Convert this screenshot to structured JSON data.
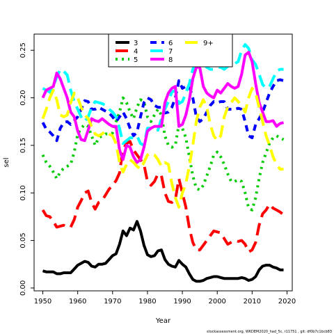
{
  "chart_data": {
    "type": "line",
    "xlabel": "Year",
    "ylabel": "sel",
    "xlim": [
      1947.5,
      2021.5
    ],
    "ylim": [
      -0.003,
      0.267
    ],
    "x_ticks": [
      1950,
      1960,
      1970,
      1980,
      1990,
      2000,
      2010,
      2020
    ],
    "y_ticks": [
      0.0,
      0.05,
      0.1,
      0.15,
      0.2,
      0.25
    ],
    "y_tick_labels": [
      "0.00",
      "0.05",
      "0.10",
      "0.15",
      "0.20",
      "0.25"
    ],
    "legend_position": "top-center",
    "footnote": "stockassessment.org, WKDEM2020_had_5c, r11751 , git: df0b7c1bcb83",
    "years": [
      1950,
      1951,
      1952,
      1953,
      1954,
      1955,
      1956,
      1957,
      1958,
      1959,
      1960,
      1961,
      1962,
      1963,
      1964,
      1965,
      1966,
      1967,
      1968,
      1969,
      1970,
      1971,
      1972,
      1973,
      1974,
      1975,
      1976,
      1977,
      1978,
      1979,
      1980,
      1981,
      1982,
      1983,
      1984,
      1985,
      1986,
      1987,
      1988,
      1989,
      1990,
      1991,
      1992,
      1993,
      1994,
      1995,
      1996,
      1997,
      1998,
      1999,
      2000,
      2001,
      2002,
      2003,
      2004,
      2005,
      2006,
      2007,
      2008,
      2009,
      2010,
      2011,
      2012,
      2013,
      2014,
      2015,
      2016,
      2017,
      2018,
      2019
    ],
    "series": [
      {
        "name": "3",
        "color": "#000000",
        "dash": "solid",
        "values": [
          0.018,
          0.017,
          0.017,
          0.017,
          0.015,
          0.015,
          0.016,
          0.016,
          0.016,
          0.02,
          0.024,
          0.026,
          0.028,
          0.027,
          0.023,
          0.022,
          0.025,
          0.025,
          0.026,
          0.03,
          0.034,
          0.036,
          0.046,
          0.06,
          0.055,
          0.063,
          0.061,
          0.07,
          0.06,
          0.045,
          0.035,
          0.033,
          0.034,
          0.039,
          0.04,
          0.03,
          0.025,
          0.023,
          0.022,
          0.029,
          0.025,
          0.022,
          0.015,
          0.009,
          0.007,
          0.007,
          0.008,
          0.01,
          0.011,
          0.012,
          0.012,
          0.011,
          0.01,
          0.01,
          0.01,
          0.01,
          0.01,
          0.011,
          0.01,
          0.008,
          0.009,
          0.012,
          0.019,
          0.023,
          0.024,
          0.024,
          0.022,
          0.021,
          0.019,
          0.019
        ]
      },
      {
        "name": "4",
        "color": "#ff0000",
        "dash": "long",
        "values": [
          0.082,
          0.076,
          0.075,
          0.07,
          0.064,
          0.065,
          0.066,
          0.064,
          0.064,
          0.072,
          0.085,
          0.092,
          0.1,
          0.102,
          0.09,
          0.083,
          0.09,
          0.092,
          0.098,
          0.104,
          0.108,
          0.113,
          0.121,
          0.146,
          0.152,
          0.154,
          0.145,
          0.14,
          0.135,
          0.13,
          0.112,
          0.108,
          0.112,
          0.12,
          0.118,
          0.1,
          0.091,
          0.09,
          0.093,
          0.115,
          0.1,
          0.085,
          0.063,
          0.048,
          0.04,
          0.04,
          0.045,
          0.05,
          0.055,
          0.06,
          0.059,
          0.058,
          0.052,
          0.046,
          0.048,
          0.05,
          0.049,
          0.05,
          0.046,
          0.038,
          0.04,
          0.048,
          0.066,
          0.078,
          0.082,
          0.088,
          0.084,
          0.082,
          0.08,
          0.077
        ]
      },
      {
        "name": "5",
        "color": "#00cc00",
        "dash": "dotted",
        "values": [
          0.14,
          0.132,
          0.128,
          0.122,
          0.115,
          0.122,
          0.126,
          0.128,
          0.13,
          0.143,
          0.162,
          0.168,
          0.172,
          0.17,
          0.16,
          0.15,
          0.158,
          0.16,
          0.162,
          0.162,
          0.163,
          0.175,
          0.185,
          0.2,
          0.195,
          0.185,
          0.178,
          0.19,
          0.198,
          0.196,
          0.18,
          0.175,
          0.182,
          0.188,
          0.182,
          0.16,
          0.15,
          0.148,
          0.15,
          0.172,
          0.168,
          0.158,
          0.138,
          0.118,
          0.105,
          0.103,
          0.108,
          0.118,
          0.128,
          0.14,
          0.143,
          0.138,
          0.13,
          0.12,
          0.112,
          0.112,
          0.114,
          0.112,
          0.1,
          0.084,
          0.082,
          0.095,
          0.115,
          0.132,
          0.142,
          0.152,
          0.158,
          0.16,
          0.158,
          0.156
        ]
      },
      {
        "name": "6",
        "color": "#0000ff",
        "dash": "dashed",
        "values": [
          0.174,
          0.167,
          0.164,
          0.16,
          0.155,
          0.168,
          0.174,
          0.175,
          0.172,
          0.176,
          0.18,
          0.188,
          0.197,
          0.196,
          0.188,
          0.188,
          0.19,
          0.188,
          0.186,
          0.184,
          0.18,
          0.175,
          0.18,
          0.185,
          0.178,
          0.168,
          0.16,
          0.164,
          0.18,
          0.195,
          0.2,
          0.198,
          0.192,
          0.19,
          0.19,
          0.184,
          0.185,
          0.19,
          0.2,
          0.218,
          0.21,
          0.212,
          0.212,
          0.2,
          0.18,
          0.175,
          0.178,
          0.185,
          0.192,
          0.196,
          0.195,
          0.196,
          0.196,
          0.188,
          0.188,
          0.188,
          0.189,
          0.188,
          0.175,
          0.16,
          0.158,
          0.172,
          0.178,
          0.185,
          0.195,
          0.205,
          0.212,
          0.218,
          0.219,
          0.218
        ]
      },
      {
        "name": "7",
        "color": "#00ffff",
        "dash": "long",
        "values": [
          0.21,
          0.208,
          0.206,
          0.212,
          0.222,
          0.23,
          0.228,
          0.224,
          0.208,
          0.196,
          0.188,
          0.18,
          0.175,
          0.18,
          0.19,
          0.196,
          0.195,
          0.194,
          0.192,
          0.188,
          0.185,
          0.18,
          0.168,
          0.152,
          0.155,
          0.158,
          0.158,
          0.16,
          0.152,
          0.15,
          0.168,
          0.168,
          0.166,
          0.166,
          0.178,
          0.188,
          0.196,
          0.206,
          0.208,
          0.194,
          0.196,
          0.205,
          0.215,
          0.23,
          0.238,
          0.238,
          0.235,
          0.232,
          0.23,
          0.23,
          0.232,
          0.232,
          0.23,
          0.233,
          0.235,
          0.236,
          0.238,
          0.25,
          0.256,
          0.252,
          0.24,
          0.235,
          0.225,
          0.214,
          0.21,
          0.212,
          0.22,
          0.228,
          0.23,
          0.23
        ]
      },
      {
        "name": "8",
        "color": "#ff00ff",
        "dash": "solid",
        "values": [
          0.2,
          0.208,
          0.21,
          0.212,
          0.226,
          0.22,
          0.21,
          0.2,
          0.185,
          0.18,
          0.165,
          0.156,
          0.155,
          0.166,
          0.178,
          0.176,
          0.175,
          0.178,
          0.175,
          0.172,
          0.17,
          0.17,
          0.145,
          0.135,
          0.15,
          0.148,
          0.138,
          0.132,
          0.135,
          0.148,
          0.165,
          0.168,
          0.17,
          0.17,
          0.17,
          0.195,
          0.205,
          0.21,
          0.212,
          0.17,
          0.172,
          0.182,
          0.198,
          0.22,
          0.232,
          0.232,
          0.212,
          0.205,
          0.202,
          0.2,
          0.208,
          0.205,
          0.21,
          0.215,
          0.212,
          0.21,
          0.212,
          0.225,
          0.245,
          0.248,
          0.238,
          0.215,
          0.195,
          0.185,
          0.175,
          0.175,
          0.176,
          0.17,
          0.173,
          0.174
        ]
      },
      {
        "name": "9+",
        "color": "#ffff00",
        "dash": "long",
        "values": [
          0.178,
          0.188,
          0.2,
          0.208,
          0.198,
          0.182,
          0.18,
          0.182,
          0.195,
          0.205,
          0.2,
          0.19,
          0.182,
          0.178,
          0.17,
          0.162,
          0.16,
          0.162,
          0.165,
          0.162,
          0.16,
          0.152,
          0.132,
          0.122,
          0.13,
          0.135,
          0.132,
          0.128,
          0.125,
          0.132,
          0.14,
          0.142,
          0.14,
          0.135,
          0.128,
          0.132,
          0.13,
          0.11,
          0.095,
          0.085,
          0.1,
          0.11,
          0.128,
          0.15,
          0.175,
          0.19,
          0.198,
          0.19,
          0.172,
          0.16,
          0.155,
          0.16,
          0.18,
          0.19,
          0.195,
          0.2,
          0.196,
          0.192,
          0.185,
          0.2,
          0.21,
          0.205,
          0.19,
          0.175,
          0.16,
          0.15,
          0.138,
          0.13,
          0.125,
          0.125
        ]
      }
    ]
  }
}
